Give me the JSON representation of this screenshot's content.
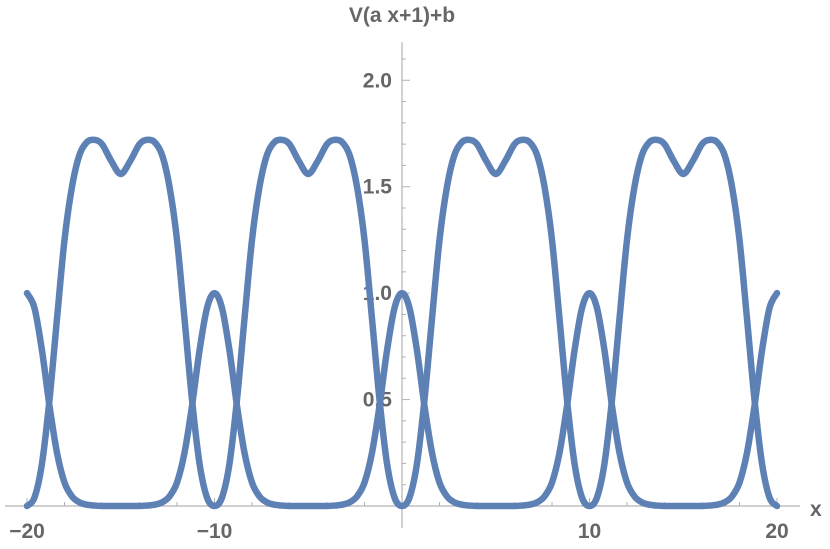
{
  "chart_data": {
    "type": "line",
    "title": "",
    "xlabel": "x",
    "ylabel": "V(a x+1)+b",
    "xlim": [
      -20,
      20
    ],
    "ylim": [
      0,
      2.1
    ],
    "grid": false,
    "legend": "none",
    "x_ticks": [
      "−20",
      "−10",
      "10",
      "20"
    ],
    "x_tick_values": [
      -20,
      -10,
      10,
      20
    ],
    "y_ticks": [
      "0.5",
      "1.0",
      "1.5",
      "2.0"
    ],
    "y_tick_values": [
      0.5,
      1.0,
      1.5,
      2.0
    ],
    "colors": {
      "series": "#5e81b5",
      "axis": "#b3b3b3",
      "text": "#666666"
    },
    "series": [
      {
        "x": [
          -20,
          -19.6,
          -19.2,
          -18.8,
          -18.4,
          -18,
          -17.6,
          -17.2,
          -16.8,
          -16.4,
          -16,
          -15.5,
          -15,
          -14.5,
          -14,
          -13.6,
          -13.2,
          -12.8,
          -12.4,
          -12,
          -11.6,
          -11.2,
          -10.8,
          -10.4,
          -10,
          -9.6,
          -9.2,
          -8.8,
          -8.4,
          -8,
          -7.6,
          -7.2,
          -6.8,
          -6.4,
          -6,
          -5.5,
          -5,
          -4.5,
          -4,
          -3.6,
          -3.2,
          -2.8,
          -2.4,
          -2,
          -1.6,
          -1.2,
          -0.8,
          -0.4,
          0,
          0.4,
          0.8,
          1.2,
          1.6,
          2,
          2.4,
          2.8,
          3.2,
          3.6,
          4,
          4.5,
          5,
          5.5,
          6,
          6.4,
          6.8,
          7.2,
          7.6,
          8,
          8.4,
          8.8,
          9.2,
          9.6,
          10,
          10.4,
          10.8,
          11.2,
          11.6,
          12,
          12.4,
          12.8,
          13.2,
          13.6,
          14,
          14.5,
          15,
          15.5,
          16,
          16.4,
          16.8,
          17.2,
          17.6,
          18,
          18.4,
          18.8,
          19.2,
          19.6,
          20
        ],
        "values": [
          1.0,
          0.93,
          0.73,
          0.47,
          0.25,
          0.11,
          0.045,
          0.017,
          0.006,
          0.002,
          0.0,
          0.0,
          0.0,
          0.0,
          0.0,
          0.002,
          0.006,
          0.017,
          0.045,
          0.11,
          0.25,
          0.47,
          0.73,
          0.93,
          1.0,
          0.93,
          0.73,
          0.47,
          0.25,
          0.11,
          0.045,
          0.017,
          0.006,
          0.002,
          0.0,
          0.0,
          0.0,
          0.0,
          0.0,
          0.002,
          0.006,
          0.017,
          0.045,
          0.11,
          0.25,
          0.47,
          0.73,
          0.93,
          1.0,
          0.93,
          0.73,
          0.47,
          0.25,
          0.11,
          0.045,
          0.017,
          0.006,
          0.002,
          0.0,
          0.0,
          0.0,
          0.0,
          0.0,
          0.002,
          0.006,
          0.017,
          0.045,
          0.11,
          0.25,
          0.47,
          0.73,
          0.93,
          1.0,
          0.93,
          0.73,
          0.47,
          0.25,
          0.11,
          0.045,
          0.017,
          0.006,
          0.002,
          0.0,
          0.0,
          0.0,
          0.0,
          0.0,
          0.002,
          0.006,
          0.017,
          0.045,
          0.11,
          0.25,
          0.47,
          0.73,
          0.93,
          1.0
        ]
      },
      {
        "x": [
          -20,
          -19.6,
          -19.2,
          -18.8,
          -18.4,
          -18,
          -17.6,
          -17.2,
          -16.8,
          -16.4,
          -16,
          -15.5,
          -15,
          -14.5,
          -14,
          -13.6,
          -13.2,
          -12.8,
          -12.4,
          -12,
          -11.6,
          -11.2,
          -10.8,
          -10.4,
          -10,
          -9.6,
          -9.2,
          -8.8,
          -8.4,
          -8,
          -7.6,
          -7.2,
          -6.8,
          -6.4,
          -6,
          -5.5,
          -5,
          -4.5,
          -4,
          -3.6,
          -3.2,
          -2.8,
          -2.4,
          -2,
          -1.6,
          -1.2,
          -0.8,
          -0.4,
          0,
          0.4,
          0.8,
          1.2,
          1.6,
          2,
          2.4,
          2.8,
          3.2,
          3.6,
          4,
          4.5,
          5,
          5.5,
          6,
          6.4,
          6.8,
          7.2,
          7.6,
          8,
          8.4,
          8.8,
          9.2,
          9.6,
          10,
          10.4,
          10.8,
          11.2,
          11.6,
          12,
          12.4,
          12.8,
          13.2,
          13.6,
          14,
          14.5,
          15,
          15.5,
          16,
          16.4,
          16.8,
          17.2,
          17.6,
          18,
          18.4,
          18.8,
          19.2,
          19.6,
          20
        ],
        "values": [
          0.0,
          0.04,
          0.2,
          0.5,
          0.88,
          1.25,
          1.5,
          1.65,
          1.71,
          1.72,
          1.7,
          1.62,
          1.56,
          1.62,
          1.7,
          1.72,
          1.71,
          1.65,
          1.5,
          1.25,
          0.88,
          0.5,
          0.2,
          0.04,
          0.0,
          0.04,
          0.2,
          0.5,
          0.88,
          1.25,
          1.5,
          1.65,
          1.71,
          1.72,
          1.7,
          1.62,
          1.56,
          1.62,
          1.7,
          1.72,
          1.71,
          1.65,
          1.5,
          1.25,
          0.88,
          0.5,
          0.2,
          0.04,
          0.0,
          0.04,
          0.2,
          0.5,
          0.88,
          1.25,
          1.5,
          1.65,
          1.71,
          1.72,
          1.7,
          1.62,
          1.56,
          1.62,
          1.7,
          1.72,
          1.71,
          1.65,
          1.5,
          1.25,
          0.88,
          0.5,
          0.2,
          0.04,
          0.0,
          0.04,
          0.2,
          0.5,
          0.88,
          1.25,
          1.5,
          1.65,
          1.71,
          1.72,
          1.7,
          1.62,
          1.56,
          1.62,
          1.7,
          1.72,
          1.71,
          1.65,
          1.5,
          1.25,
          0.88,
          0.5,
          0.2,
          0.04,
          0.0
        ]
      }
    ]
  }
}
